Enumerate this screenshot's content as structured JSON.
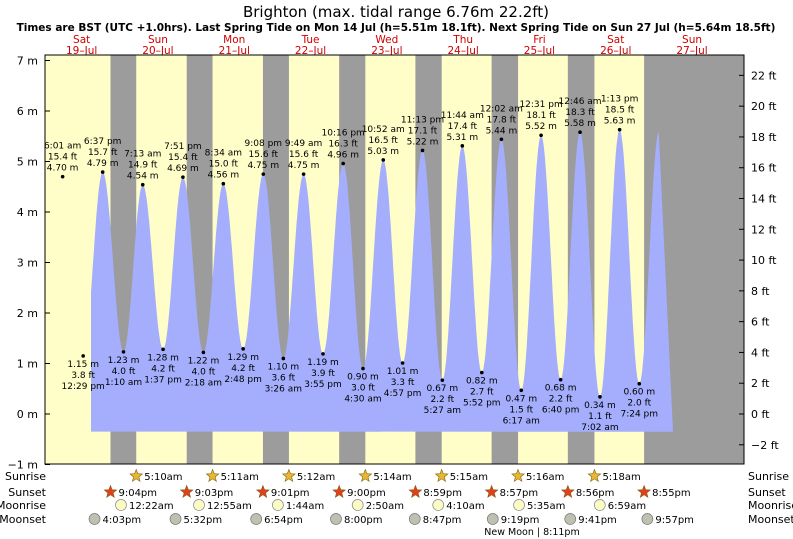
{
  "chart_data": {
    "type": "area",
    "title": "Brighton (max. tidal range 6.76m 22.2ft)",
    "subtitle": "Times are BST (UTC +1.0hrs). Last Spring Tide on Mon 14 Jul (h=5.51m 18.1ft). Next Spring Tide on Sun 27 Jul (h=5.64m 18.5ft)",
    "y_left": {
      "unit": "m",
      "range": [
        -1,
        7
      ],
      "ticks": [
        "−1 m",
        "0 m",
        "1 m",
        "2 m",
        "3 m",
        "4 m",
        "5 m",
        "6 m",
        "7 m"
      ]
    },
    "y_right": {
      "unit": "ft",
      "ticks": [
        "−2 ft",
        "0 ft",
        "2 ft",
        "4 ft",
        "6 ft",
        "8 ft",
        "10 ft",
        "12 ft",
        "14 ft",
        "16 ft",
        "18 ft",
        "20 ft",
        "22 ft"
      ]
    },
    "days": [
      {
        "name": "Sat",
        "date": "19–Jul"
      },
      {
        "name": "Sun",
        "date": "20–Jul"
      },
      {
        "name": "Mon",
        "date": "21–Jul"
      },
      {
        "name": "Tue",
        "date": "22–Jul"
      },
      {
        "name": "Wed",
        "date": "23–Jul"
      },
      {
        "name": "Thu",
        "date": "24–Jul"
      },
      {
        "name": "Fri",
        "date": "25–Jul"
      },
      {
        "name": "Sat",
        "date": "26–Jul"
      },
      {
        "name": "Sun",
        "date": "27–Jul"
      }
    ],
    "tides": [
      {
        "type": "high",
        "day": 0,
        "time": "6:01 am",
        "m": "4.70 m",
        "ft": "15.4 ft",
        "value": 4.7
      },
      {
        "type": "low",
        "day": 0,
        "time": "12:29 pm",
        "m": "1.15 m",
        "ft": "3.8 ft",
        "value": 1.15
      },
      {
        "type": "high",
        "day": 0,
        "time": "6:37 pm",
        "m": "4.79 m",
        "ft": "15.7 ft",
        "value": 4.79
      },
      {
        "type": "low",
        "day": 1,
        "time": "1:10 am",
        "m": "1.23 m",
        "ft": "4.0 ft",
        "value": 1.23
      },
      {
        "type": "high",
        "day": 1,
        "time": "7:13 am",
        "m": "4.54 m",
        "ft": "14.9 ft",
        "value": 4.54
      },
      {
        "type": "low",
        "day": 1,
        "time": "1:37 pm",
        "m": "1.28 m",
        "ft": "4.2 ft",
        "value": 1.28
      },
      {
        "type": "high",
        "day": 1,
        "time": "7:51 pm",
        "m": "4.69 m",
        "ft": "15.4 ft",
        "value": 4.69
      },
      {
        "type": "low",
        "day": 2,
        "time": "2:18 am",
        "m": "1.22 m",
        "ft": "4.0 ft",
        "value": 1.22
      },
      {
        "type": "high",
        "day": 2,
        "time": "8:34 am",
        "m": "4.56 m",
        "ft": "15.0 ft",
        "value": 4.56
      },
      {
        "type": "low",
        "day": 2,
        "time": "2:48 pm",
        "m": "1.29 m",
        "ft": "4.2 ft",
        "value": 1.29
      },
      {
        "type": "high",
        "day": 2,
        "time": "9:08 pm",
        "m": "4.75 m",
        "ft": "15.6 ft",
        "value": 4.75
      },
      {
        "type": "low",
        "day": 3,
        "time": "3:26 am",
        "m": "1.10 m",
        "ft": "3.6 ft",
        "value": 1.1
      },
      {
        "type": "high",
        "day": 3,
        "time": "9:49 am",
        "m": "4.75 m",
        "ft": "15.6 ft",
        "value": 4.75
      },
      {
        "type": "low",
        "day": 3,
        "time": "3:55 pm",
        "m": "1.19 m",
        "ft": "3.9 ft",
        "value": 1.19
      },
      {
        "type": "high",
        "day": 3,
        "time": "10:16 pm",
        "m": "4.96 m",
        "ft": "16.3 ft",
        "value": 4.96
      },
      {
        "type": "low",
        "day": 4,
        "time": "4:30 am",
        "m": "0.90 m",
        "ft": "3.0 ft",
        "value": 0.9
      },
      {
        "type": "high",
        "day": 4,
        "time": "10:52 am",
        "m": "5.03 m",
        "ft": "16.5 ft",
        "value": 5.03
      },
      {
        "type": "low",
        "day": 4,
        "time": "4:57 pm",
        "m": "1.01 m",
        "ft": "3.3 ft",
        "value": 1.01
      },
      {
        "type": "high",
        "day": 4,
        "time": "11:13 pm",
        "m": "5.22 m",
        "ft": "17.1 ft",
        "value": 5.22
      },
      {
        "type": "low",
        "day": 5,
        "time": "5:27 am",
        "m": "0.67 m",
        "ft": "2.2 ft",
        "value": 0.67
      },
      {
        "type": "high",
        "day": 5,
        "time": "11:44 am",
        "m": "5.31 m",
        "ft": "17.4 ft",
        "value": 5.31
      },
      {
        "type": "low",
        "day": 5,
        "time": "5:52 pm",
        "m": "0.82 m",
        "ft": "2.7 ft",
        "value": 0.82
      },
      {
        "type": "high",
        "day": 6,
        "time": "12:02 am",
        "m": "5.44 m",
        "ft": "17.8 ft",
        "value": 5.44
      },
      {
        "type": "low",
        "day": 6,
        "time": "6:17 am",
        "m": "0.47 m",
        "ft": "1.5 ft",
        "value": 0.47
      },
      {
        "type": "high",
        "day": 6,
        "time": "12:31 pm",
        "m": "5.52 m",
        "ft": "18.1 ft",
        "value": 5.52
      },
      {
        "type": "low",
        "day": 6,
        "time": "6:40 pm",
        "m": "0.68 m",
        "ft": "2.2 ft",
        "value": 0.68
      },
      {
        "type": "high",
        "day": 7,
        "time": "12:46 am",
        "m": "5.58 m",
        "ft": "18.3 ft",
        "value": 5.58
      },
      {
        "type": "low",
        "day": 7,
        "time": "7:02 am",
        "m": "0.34 m",
        "ft": "1.1 ft",
        "value": 0.34
      },
      {
        "type": "high",
        "day": 7,
        "time": "1:13 pm",
        "m": "5.63 m",
        "ft": "18.5 ft",
        "value": 5.63
      },
      {
        "type": "low",
        "day": 7,
        "time": "7:24 pm",
        "m": "0.60 m",
        "ft": "2.0 ft",
        "value": 0.6
      }
    ],
    "sunrise": [
      "5:10am",
      "5:11am",
      "5:12am",
      "5:14am",
      "5:15am",
      "5:16am",
      "5:18am"
    ],
    "sunset": [
      "9:04pm",
      "9:03pm",
      "9:01pm",
      "9:00pm",
      "8:59pm",
      "8:57pm",
      "8:56pm",
      "8:55pm"
    ],
    "moonrise": [
      "12:22am",
      "12:55am",
      "1:44am",
      "2:50am",
      "4:10am",
      "5:35am",
      "6:59am"
    ],
    "moonset": [
      "4:03pm",
      "5:32pm",
      "6:54pm",
      "8:00pm",
      "8:47pm",
      "9:19pm",
      "9:41pm",
      "9:57pm"
    ],
    "row_labels": {
      "sunrise": "Sunrise",
      "sunset": "Sunset",
      "moonrise": "Moonrise",
      "moonset": "Moonset"
    },
    "new_moon_label": "New Moon | 8:11pm",
    "colors": {
      "water": "#a4aefc",
      "day": "#fffec8",
      "night": "#9c9c9c",
      "day_label": "#d00000",
      "star": "#e8b830",
      "sunset_star": "#e04020",
      "moon": "#fbfbc4",
      "moonset": "#c0c0b0"
    }
  }
}
